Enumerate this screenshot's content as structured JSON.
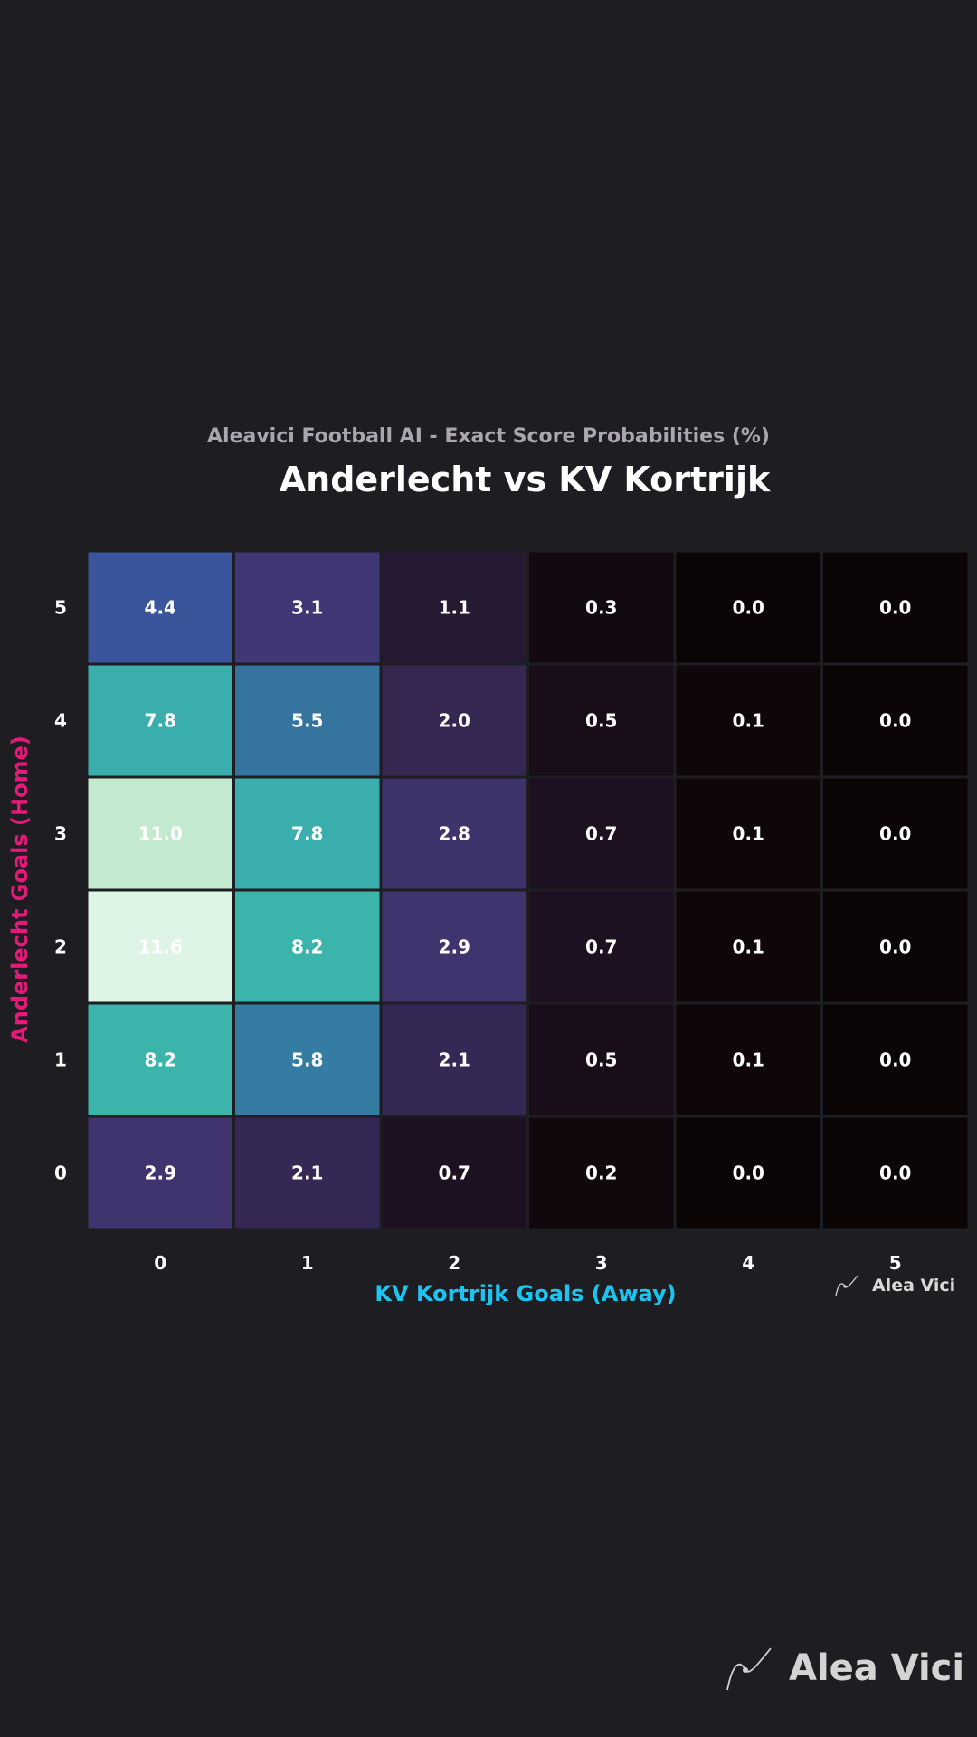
{
  "subtitle": "Aleavici Football AI - Exact Score Probabilities (%)",
  "title": "Anderlecht vs KV Kortrijk",
  "brand": {
    "logo_icon": "alea-vici-logo-icon",
    "name": "Alea Vici"
  },
  "colors": {
    "background": "#1e1d22",
    "ylabel": "#e6197a",
    "xlabel": "#1ec4f0"
  },
  "chart_data": {
    "type": "heatmap",
    "title": "Anderlecht vs KV Kortrijk",
    "subtitle": "Aleavici Football AI - Exact Score Probabilities (%)",
    "xlabel": "KV Kortrijk Goals (Away)",
    "ylabel": "Anderlecht Goals (Home)",
    "x": [
      "0",
      "1",
      "2",
      "3",
      "4",
      "5"
    ],
    "y": [
      "5",
      "4",
      "3",
      "2",
      "1",
      "0"
    ],
    "values": [
      [
        4.4,
        3.1,
        1.1,
        0.3,
        0.0,
        0.0
      ],
      [
        7.8,
        5.5,
        2.0,
        0.5,
        0.1,
        0.0
      ],
      [
        11.0,
        7.8,
        2.8,
        0.7,
        0.1,
        0.0
      ],
      [
        11.6,
        8.2,
        2.9,
        0.7,
        0.1,
        0.0
      ],
      [
        8.2,
        5.8,
        2.1,
        0.5,
        0.1,
        0.0
      ],
      [
        2.9,
        2.1,
        0.7,
        0.2,
        0.0,
        0.0
      ]
    ],
    "colormap": "mako"
  }
}
